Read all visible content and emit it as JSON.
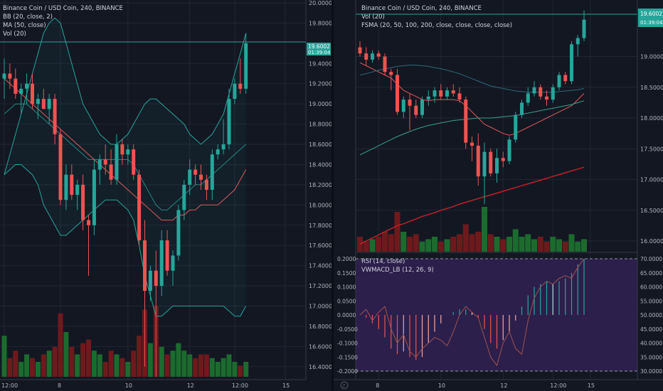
{
  "colors": {
    "background": "#131722",
    "grid": "#232735",
    "axis_text": "#b2b5be",
    "up": "#26a69a",
    "down": "#ef5350",
    "vol_up": "#1c6b2e",
    "vol_down": "#6e1a1c",
    "bb_band": "#26a69a",
    "ma": "#e0595a",
    "last_price_bg": "#26a69a",
    "rsi_bg": "#2c1f4b",
    "rsi_line": "#a0524f"
  },
  "left_chart": {
    "legend": [
      "Binance Coin / USD Coin, 240, BINANCE",
      "BB (20, close, 2)",
      "MA (50, close)",
      "Vol (20)"
    ],
    "last_price": "19.6002",
    "countdown": "01:39:04",
    "y_ticks": [
      "20.0000",
      "19.8000",
      "19.4000",
      "19.2000",
      "19.0000",
      "18.8000",
      "18.6000",
      "18.4000",
      "18.2000",
      "18.0000",
      "17.8000",
      "17.6000",
      "17.4000",
      "17.2000",
      "17.0000",
      "16.8000",
      "16.6000",
      "16.4000"
    ],
    "x_ticks": [
      "12:00",
      "8",
      "10",
      "12",
      "12:00",
      "15"
    ]
  },
  "right_chart": {
    "legend": [
      "Binance Coin / USD Coin, 240, BINANCE",
      "Vol (20)",
      "FSMA (20, 50, 100, 200, close, close, close, close)"
    ],
    "last_price": "19.6002",
    "countdown": "01:39:04",
    "y_ticks": [
      "19.0000",
      "18.5000",
      "18.0000",
      "17.5000",
      "17.0000",
      "16.5000",
      "16.0000"
    ],
    "x_ticks": [
      "8",
      "10",
      "12",
      "12:00",
      "15"
    ],
    "indicator_legend": [
      "RSI (14, close)",
      "VWMACD_LB (12, 26, 9)"
    ],
    "indicator_left_ticks": [
      "0.2000",
      "0.1500",
      "0.1000",
      "0.0500",
      "0.0000",
      "-0.0500",
      "-0.1000",
      "-0.1500",
      "-0.2000"
    ],
    "indicator_right_ticks": [
      "70.0000",
      "65.0000",
      "60.0000",
      "55.0000",
      "50.0000",
      "45.0000",
      "40.0000",
      "35.0000",
      "30.0000"
    ],
    "corner_icon": "tradingview-logo-icon"
  },
  "chart_data": [
    {
      "type": "candlestick",
      "title": "Binance Coin / USD Coin, 240, BINANCE",
      "ylim": [
        16.3,
        20.0
      ],
      "candles": [
        {
          "o": 19.25,
          "h": 19.45,
          "l": 19.05,
          "c": 19.3
        },
        {
          "o": 19.3,
          "h": 19.4,
          "l": 19.15,
          "c": 19.25
        },
        {
          "o": 19.25,
          "h": 19.35,
          "l": 19.05,
          "c": 19.1
        },
        {
          "o": 19.1,
          "h": 19.2,
          "l": 18.9,
          "c": 19.15
        },
        {
          "o": 19.15,
          "h": 19.3,
          "l": 19.0,
          "c": 19.2
        },
        {
          "o": 19.2,
          "h": 19.3,
          "l": 18.95,
          "c": 19.0
        },
        {
          "o": 19.0,
          "h": 19.1,
          "l": 18.85,
          "c": 19.05
        },
        {
          "o": 19.05,
          "h": 19.15,
          "l": 18.95,
          "c": 18.95
        },
        {
          "o": 18.95,
          "h": 19.1,
          "l": 18.8,
          "c": 19.05
        },
        {
          "o": 19.05,
          "h": 19.1,
          "l": 18.6,
          "c": 18.7
        },
        {
          "o": 18.7,
          "h": 18.75,
          "l": 18.0,
          "c": 18.05
        },
        {
          "o": 18.05,
          "h": 18.4,
          "l": 17.95,
          "c": 18.3
        },
        {
          "o": 18.3,
          "h": 18.4,
          "l": 18.05,
          "c": 18.1
        },
        {
          "o": 18.1,
          "h": 18.25,
          "l": 17.95,
          "c": 18.2
        },
        {
          "o": 18.2,
          "h": 18.3,
          "l": 17.75,
          "c": 17.85
        },
        {
          "o": 17.85,
          "h": 17.9,
          "l": 17.3,
          "c": 17.8
        },
        {
          "o": 17.8,
          "h": 18.45,
          "l": 17.7,
          "c": 18.35
        },
        {
          "o": 18.35,
          "h": 18.5,
          "l": 18.2,
          "c": 18.45
        },
        {
          "o": 18.45,
          "h": 18.6,
          "l": 18.3,
          "c": 18.4
        },
        {
          "o": 18.4,
          "h": 18.55,
          "l": 18.2,
          "c": 18.25
        },
        {
          "o": 18.25,
          "h": 18.7,
          "l": 18.2,
          "c": 18.6
        },
        {
          "o": 18.6,
          "h": 18.65,
          "l": 18.4,
          "c": 18.5
        },
        {
          "o": 18.5,
          "h": 18.6,
          "l": 18.4,
          "c": 18.55
        },
        {
          "o": 18.55,
          "h": 18.6,
          "l": 18.25,
          "c": 18.3
        },
        {
          "o": 18.3,
          "h": 18.35,
          "l": 17.6,
          "c": 17.65
        },
        {
          "o": 17.65,
          "h": 17.85,
          "l": 16.4,
          "c": 17.15
        },
        {
          "o": 17.15,
          "h": 17.4,
          "l": 17.05,
          "c": 17.35
        },
        {
          "o": 17.35,
          "h": 17.55,
          "l": 16.3,
          "c": 17.2
        },
        {
          "o": 17.2,
          "h": 17.75,
          "l": 17.1,
          "c": 17.65
        },
        {
          "o": 17.65,
          "h": 17.75,
          "l": 17.3,
          "c": 17.35
        },
        {
          "o": 17.35,
          "h": 17.55,
          "l": 17.2,
          "c": 17.5
        },
        {
          "o": 17.5,
          "h": 18.0,
          "l": 17.45,
          "c": 17.95
        },
        {
          "o": 17.95,
          "h": 18.25,
          "l": 17.85,
          "c": 18.2
        },
        {
          "o": 18.2,
          "h": 18.45,
          "l": 18.1,
          "c": 18.35
        },
        {
          "o": 18.35,
          "h": 18.4,
          "l": 18.2,
          "c": 18.3
        },
        {
          "o": 18.3,
          "h": 18.4,
          "l": 18.15,
          "c": 18.25
        },
        {
          "o": 18.25,
          "h": 18.3,
          "l": 18.05,
          "c": 18.15
        },
        {
          "o": 18.15,
          "h": 18.55,
          "l": 18.05,
          "c": 18.5
        },
        {
          "o": 18.5,
          "h": 18.6,
          "l": 18.45,
          "c": 18.55
        },
        {
          "o": 18.55,
          "h": 18.85,
          "l": 18.5,
          "c": 18.6
        },
        {
          "o": 18.6,
          "h": 19.15,
          "l": 18.55,
          "c": 19.05
        },
        {
          "o": 19.05,
          "h": 19.25,
          "l": 19.0,
          "c": 19.2
        },
        {
          "o": 19.2,
          "h": 19.45,
          "l": 19.1,
          "c": 19.15
        },
        {
          "o": 19.15,
          "h": 19.7,
          "l": 19.1,
          "c": 19.6
        }
      ],
      "volume": [
        0.55,
        0.25,
        0.35,
        0.2,
        0.3,
        0.25,
        0.2,
        0.3,
        0.35,
        0.4,
        0.85,
        0.6,
        0.4,
        0.3,
        0.45,
        0.5,
        0.35,
        0.3,
        0.2,
        0.35,
        0.3,
        0.25,
        0.2,
        0.35,
        0.55,
        0.9,
        0.45,
        0.95,
        0.4,
        0.3,
        0.35,
        0.45,
        0.35,
        0.3,
        0.25,
        0.3,
        0.3,
        0.25,
        0.2,
        0.25,
        0.3,
        0.2,
        0.15,
        0.2
      ],
      "bb_upper": [
        18.3,
        18.5,
        18.7,
        18.9,
        19.1,
        19.3,
        19.5,
        19.7,
        19.8,
        19.85,
        19.8,
        19.6,
        19.4,
        19.2,
        19.0,
        18.9,
        18.8,
        18.7,
        18.65,
        18.6,
        18.6,
        18.65,
        18.7,
        18.8,
        18.9,
        19.0,
        19.05,
        19.05,
        19.0,
        18.95,
        18.9,
        18.85,
        18.8,
        18.7,
        18.65,
        18.6,
        18.65,
        18.7,
        18.8,
        18.9,
        19.1,
        19.3,
        19.5,
        19.7
      ],
      "bb_middle": [
        18.9,
        18.95,
        19.0,
        19.0,
        19.0,
        18.95,
        18.9,
        18.85,
        18.8,
        18.75,
        18.7,
        18.65,
        18.6,
        18.55,
        18.5,
        18.45,
        18.45,
        18.45,
        18.45,
        18.45,
        18.45,
        18.45,
        18.45,
        18.4,
        18.3,
        18.2,
        18.1,
        18.0,
        17.95,
        17.95,
        18.0,
        18.05,
        18.1,
        18.15,
        18.2,
        18.2,
        18.25,
        18.3,
        18.35,
        18.4,
        18.45,
        18.5,
        18.55,
        18.6
      ],
      "bb_lower": [
        18.3,
        18.35,
        18.4,
        18.4,
        18.35,
        18.3,
        18.2,
        18.0,
        17.9,
        17.8,
        17.7,
        17.7,
        17.75,
        17.8,
        17.85,
        17.9,
        17.95,
        18.0,
        18.05,
        18.05,
        18.05,
        18.0,
        17.95,
        17.85,
        17.6,
        17.3,
        17.1,
        16.9,
        16.9,
        16.95,
        17.0,
        17.0,
        17.0,
        17.0,
        17.0,
        17.0,
        17.0,
        17.0,
        17.0,
        17.0,
        16.95,
        16.9,
        16.9,
        17.0
      ],
      "ma": [
        19.25,
        19.2,
        19.15,
        19.1,
        19.05,
        19.0,
        18.95,
        18.9,
        18.85,
        18.8,
        18.75,
        18.7,
        18.65,
        18.6,
        18.55,
        18.5,
        18.45,
        18.4,
        18.35,
        18.3,
        18.25,
        18.2,
        18.15,
        18.1,
        18.05,
        18.0,
        17.95,
        17.9,
        17.85,
        17.85,
        17.85,
        17.9,
        17.9,
        17.95,
        17.95,
        18.0,
        18.0,
        18.0,
        18.0,
        18.05,
        18.1,
        18.15,
        18.25,
        18.35
      ]
    },
    {
      "type": "candlestick",
      "title": "Binance Coin / USD Coin, 240, BINANCE",
      "ylim": [
        15.85,
        19.85
      ],
      "candles": [
        {
          "o": 19.15,
          "h": 19.25,
          "l": 19.0,
          "c": 19.05
        },
        {
          "o": 19.05,
          "h": 19.15,
          "l": 18.85,
          "c": 18.95
        },
        {
          "o": 18.95,
          "h": 19.1,
          "l": 18.9,
          "c": 19.05
        },
        {
          "o": 19.05,
          "h": 19.1,
          "l": 18.95,
          "c": 19.0
        },
        {
          "o": 19.0,
          "h": 19.05,
          "l": 18.7,
          "c": 18.75
        },
        {
          "o": 18.75,
          "h": 18.8,
          "l": 18.45,
          "c": 18.7
        },
        {
          "o": 18.7,
          "h": 18.8,
          "l": 18.05,
          "c": 18.1
        },
        {
          "o": 18.1,
          "h": 18.35,
          "l": 18.0,
          "c": 18.3
        },
        {
          "o": 18.3,
          "h": 18.4,
          "l": 17.8,
          "c": 18.2
        },
        {
          "o": 18.2,
          "h": 18.3,
          "l": 18.0,
          "c": 18.05
        },
        {
          "o": 18.05,
          "h": 18.35,
          "l": 18.0,
          "c": 18.3
        },
        {
          "o": 18.3,
          "h": 18.45,
          "l": 18.2,
          "c": 18.35
        },
        {
          "o": 18.35,
          "h": 18.5,
          "l": 18.25,
          "c": 18.45
        },
        {
          "o": 18.45,
          "h": 18.55,
          "l": 18.3,
          "c": 18.35
        },
        {
          "o": 18.35,
          "h": 18.5,
          "l": 18.3,
          "c": 18.45
        },
        {
          "o": 18.45,
          "h": 18.55,
          "l": 18.35,
          "c": 18.4
        },
        {
          "o": 18.4,
          "h": 18.5,
          "l": 18.25,
          "c": 18.3
        },
        {
          "o": 18.3,
          "h": 18.35,
          "l": 17.5,
          "c": 17.6
        },
        {
          "o": 17.6,
          "h": 17.7,
          "l": 17.3,
          "c": 17.55
        },
        {
          "o": 17.55,
          "h": 17.75,
          "l": 16.9,
          "c": 17.05
        },
        {
          "o": 17.05,
          "h": 17.6,
          "l": 16.6,
          "c": 17.45
        },
        {
          "o": 17.45,
          "h": 17.5,
          "l": 17.05,
          "c": 17.1
        },
        {
          "o": 17.1,
          "h": 17.5,
          "l": 16.95,
          "c": 17.35
        },
        {
          "o": 17.35,
          "h": 17.45,
          "l": 17.2,
          "c": 17.3
        },
        {
          "o": 17.3,
          "h": 17.7,
          "l": 17.25,
          "c": 17.65
        },
        {
          "o": 17.65,
          "h": 18.1,
          "l": 17.6,
          "c": 18.05
        },
        {
          "o": 18.05,
          "h": 18.3,
          "l": 18.0,
          "c": 18.25
        },
        {
          "o": 18.25,
          "h": 18.5,
          "l": 18.2,
          "c": 18.4
        },
        {
          "o": 18.4,
          "h": 18.6,
          "l": 18.35,
          "c": 18.5
        },
        {
          "o": 18.5,
          "h": 18.55,
          "l": 18.3,
          "c": 18.35
        },
        {
          "o": 18.35,
          "h": 18.45,
          "l": 18.2,
          "c": 18.3
        },
        {
          "o": 18.3,
          "h": 18.55,
          "l": 18.25,
          "c": 18.5
        },
        {
          "o": 18.5,
          "h": 18.75,
          "l": 18.45,
          "c": 18.7
        },
        {
          "o": 18.7,
          "h": 18.75,
          "l": 18.55,
          "c": 18.6
        },
        {
          "o": 18.6,
          "h": 19.25,
          "l": 18.55,
          "c": 19.2
        },
        {
          "o": 19.2,
          "h": 19.35,
          "l": 19.0,
          "c": 19.3
        },
        {
          "o": 19.3,
          "h": 19.75,
          "l": 19.25,
          "c": 19.6
        }
      ],
      "volume": [
        0.3,
        0.2,
        0.25,
        0.3,
        0.4,
        0.35,
        0.8,
        0.4,
        0.3,
        0.35,
        0.2,
        0.25,
        0.3,
        0.2,
        0.25,
        0.3,
        0.35,
        0.55,
        0.35,
        0.4,
        0.9,
        0.35,
        0.3,
        0.25,
        0.3,
        0.45,
        0.3,
        0.35,
        0.25,
        0.3,
        0.2,
        0.3,
        0.25,
        0.2,
        0.35,
        0.2,
        0.25
      ],
      "fsma_20": [
        18.9,
        18.85,
        18.8,
        18.75,
        18.7,
        18.65,
        18.55,
        18.45,
        18.4,
        18.35,
        18.3,
        18.28,
        18.3,
        18.3,
        18.3,
        18.3,
        18.28,
        18.2,
        18.1,
        18.0,
        17.9,
        17.85,
        17.8,
        17.75,
        17.72,
        17.75,
        17.8,
        17.85,
        17.9,
        17.95,
        18.0,
        18.05,
        18.1,
        18.15,
        18.2,
        18.3,
        18.4
      ],
      "fsma_50": [
        18.7,
        18.72,
        18.75,
        18.78,
        18.8,
        18.82,
        18.84,
        18.85,
        18.86,
        18.86,
        18.85,
        18.84,
        18.82,
        18.8,
        18.78,
        18.75,
        18.72,
        18.68,
        18.64,
        18.6,
        18.56,
        18.52,
        18.5,
        18.48,
        18.46,
        18.44,
        18.43,
        18.42,
        18.42,
        18.42,
        18.42,
        18.42,
        18.43,
        18.44,
        18.45,
        18.46,
        18.48
      ],
      "fsma_100": [
        17.4,
        17.45,
        17.5,
        17.55,
        17.6,
        17.65,
        17.7,
        17.74,
        17.78,
        17.82,
        17.85,
        17.88,
        17.9,
        17.92,
        17.94,
        17.96,
        17.97,
        17.98,
        17.99,
        18.0,
        18.0,
        18.0,
        18.01,
        18.02,
        18.03,
        18.04,
        18.06,
        18.08,
        18.1,
        18.12,
        18.14,
        18.16,
        18.18,
        18.2,
        18.22,
        18.25,
        18.28
      ],
      "fsma_200": [
        15.95,
        16.0,
        16.05,
        16.1,
        16.15,
        16.2,
        16.25,
        16.28,
        16.32,
        16.36,
        16.4,
        16.43,
        16.46,
        16.5,
        16.53,
        16.56,
        16.6,
        16.63,
        16.66,
        16.69,
        16.72,
        16.75,
        16.78,
        16.81,
        16.84,
        16.87,
        16.9,
        16.93,
        16.96,
        16.99,
        17.02,
        17.05,
        17.08,
        17.11,
        17.14,
        17.17,
        17.2
      ],
      "rsi": [
        50,
        52,
        48,
        51,
        53,
        45,
        40,
        43,
        37,
        35,
        38,
        40,
        42,
        41,
        39,
        44,
        50,
        53,
        51,
        49,
        42,
        35,
        32,
        40,
        44,
        38,
        36,
        48,
        56,
        60,
        62,
        61,
        63,
        64,
        63,
        67,
        70
      ],
      "vwmacd_hist": [
        0.0,
        -0.01,
        -0.03,
        -0.05,
        -0.08,
        -0.12,
        -0.14,
        -0.13,
        -0.15,
        -0.16,
        -0.15,
        -0.1,
        -0.06,
        -0.03,
        0.0,
        0.01,
        0.02,
        0.02,
        0.01,
        -0.01,
        -0.05,
        -0.1,
        -0.12,
        -0.09,
        -0.06,
        -0.02,
        0.03,
        0.07,
        0.1,
        0.11,
        0.12,
        0.11,
        0.12,
        0.13,
        0.15,
        0.18,
        0.2
      ]
    }
  ]
}
